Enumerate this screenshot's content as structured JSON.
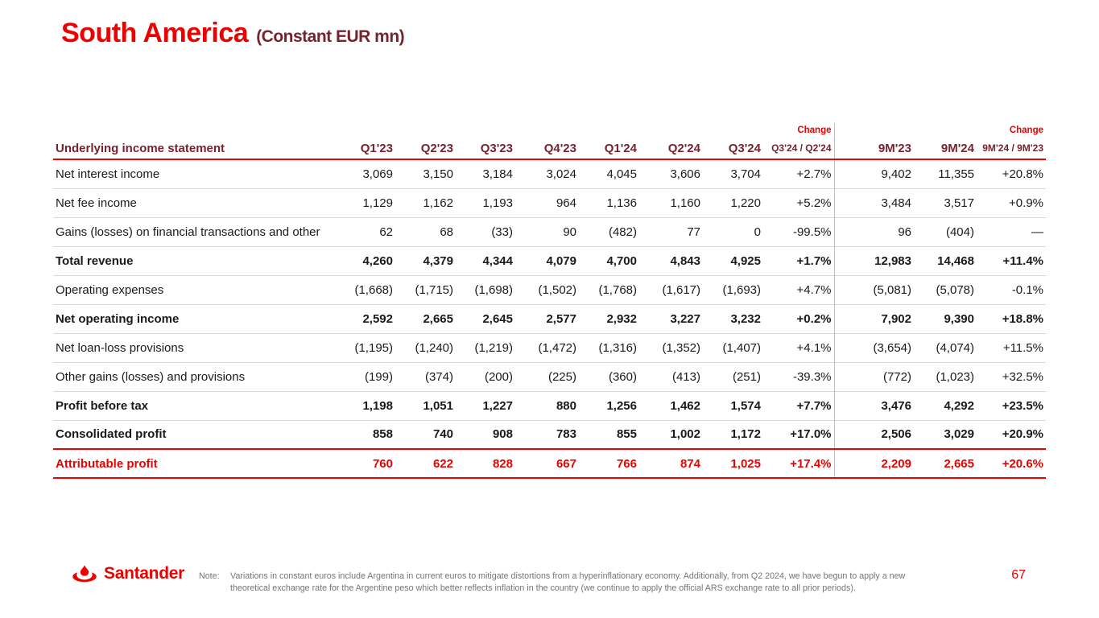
{
  "slide": {
    "title": "South America",
    "subtitle": "(Constant EUR mn)",
    "page_number": "67"
  },
  "table": {
    "header": {
      "label": "Underlying income statement",
      "quarters": [
        "Q1'23",
        "Q2'23",
        "Q3'23",
        "Q4'23",
        "Q1'24",
        "Q2'24",
        "Q3'24"
      ],
      "change_label": "Change",
      "change_q_label": "Q3'24 / Q2'24",
      "periods": [
        "9M'23",
        "9M'24"
      ],
      "change_9m_label": "9M'24 / 9M'23"
    },
    "rows": [
      {
        "label": "Net interest income",
        "values": [
          "3,069",
          "3,150",
          "3,184",
          "3,024",
          "4,045",
          "3,606",
          "3,704"
        ],
        "change_q": "+2.7%",
        "nine_months": [
          "9,402",
          "11,355"
        ],
        "change_9m": "+20.8%",
        "bold": false,
        "red": false
      },
      {
        "label": "Net fee income",
        "values": [
          "1,129",
          "1,162",
          "1,193",
          "964",
          "1,136",
          "1,160",
          "1,220"
        ],
        "change_q": "+5.2%",
        "nine_months": [
          "3,484",
          "3,517"
        ],
        "change_9m": "+0.9%",
        "bold": false,
        "red": false
      },
      {
        "label": "Gains (losses) on financial transactions and other",
        "values": [
          "62",
          "68",
          "(33)",
          "90",
          "(482)",
          "77",
          "0"
        ],
        "change_q": "-99.5%",
        "nine_months": [
          "96",
          "(404)"
        ],
        "change_9m": "—",
        "bold": false,
        "red": false
      },
      {
        "label": "Total revenue",
        "values": [
          "4,260",
          "4,379",
          "4,344",
          "4,079",
          "4,700",
          "4,843",
          "4,925"
        ],
        "change_q": "+1.7%",
        "nine_months": [
          "12,983",
          "14,468"
        ],
        "change_9m": "+11.4%",
        "bold": true,
        "red": false
      },
      {
        "label": "Operating expenses",
        "values": [
          "(1,668)",
          "(1,715)",
          "(1,698)",
          "(1,502)",
          "(1,768)",
          "(1,617)",
          "(1,693)"
        ],
        "change_q": "+4.7%",
        "nine_months": [
          "(5,081)",
          "(5,078)"
        ],
        "change_9m": "-0.1%",
        "bold": false,
        "red": false
      },
      {
        "label": "Net operating income",
        "values": [
          "2,592",
          "2,665",
          "2,645",
          "2,577",
          "2,932",
          "3,227",
          "3,232"
        ],
        "change_q": "+0.2%",
        "nine_months": [
          "7,902",
          "9,390"
        ],
        "change_9m": "+18.8%",
        "bold": true,
        "red": false
      },
      {
        "label": "Net loan-loss provisions",
        "values": [
          "(1,195)",
          "(1,240)",
          "(1,219)",
          "(1,472)",
          "(1,316)",
          "(1,352)",
          "(1,407)"
        ],
        "change_q": "+4.1%",
        "nine_months": [
          "(3,654)",
          "(4,074)"
        ],
        "change_9m": "+11.5%",
        "bold": false,
        "red": false
      },
      {
        "label": "Other gains (losses) and provisions",
        "values": [
          "(199)",
          "(374)",
          "(200)",
          "(225)",
          "(360)",
          "(413)",
          "(251)"
        ],
        "change_q": "-39.3%",
        "nine_months": [
          "(772)",
          "(1,023)"
        ],
        "change_9m": "+32.5%",
        "bold": false,
        "red": false
      },
      {
        "label": "Profit before tax",
        "values": [
          "1,198",
          "1,051",
          "1,227",
          "880",
          "1,256",
          "1,462",
          "1,574"
        ],
        "change_q": "+7.7%",
        "nine_months": [
          "3,476",
          "4,292"
        ],
        "change_9m": "+23.5%",
        "bold": true,
        "red": false
      },
      {
        "label": "Consolidated profit",
        "values": [
          "858",
          "740",
          "908",
          "783",
          "855",
          "1,002",
          "1,172"
        ],
        "change_q": "+17.0%",
        "nine_months": [
          "2,506",
          "3,029"
        ],
        "change_9m": "+20.9%",
        "bold": true,
        "red": false
      },
      {
        "label": "Attributable profit",
        "values": [
          "760",
          "622",
          "828",
          "667",
          "766",
          "874",
          "1,025"
        ],
        "change_q": "+17.4%",
        "nine_months": [
          "2,209",
          "2,665"
        ],
        "change_9m": "+20.6%",
        "bold": true,
        "red": true
      }
    ]
  },
  "footer": {
    "brand": "Santander",
    "note_label": "Note:",
    "note_text": "Variations in constant euros include Argentina in current euros to mitigate distortions from a hyperinflationary economy. Additionally, from Q2 2024, we have begun to apply a new theoretical exchange rate for the Argentine peso which better reflects inflation in the country (we continue to apply the official ARS exchange rate to all prior periods)."
  }
}
